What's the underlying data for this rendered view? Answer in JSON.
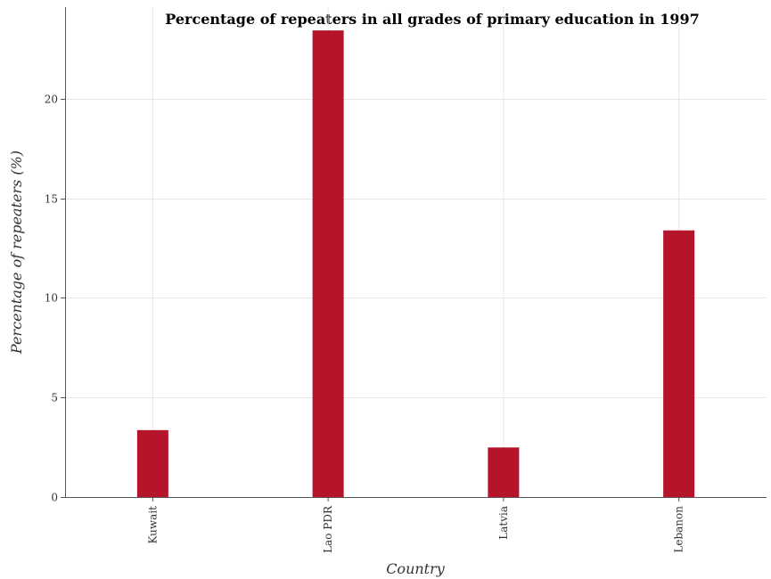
{
  "chart_data": {
    "type": "bar",
    "title": "Percentage of repeaters in all grades of primary education in 1997",
    "xlabel": "Country",
    "ylabel": "Percentage of repeaters (%)",
    "categories": [
      "Kuwait",
      "Lao PDR",
      "Latvia",
      "Lebanon"
    ],
    "values": [
      3.36,
      23.43,
      2.49,
      13.39
    ],
    "ylim": [
      0,
      24.6
    ],
    "yticks": [
      0,
      5,
      10,
      15,
      20
    ],
    "ytick_labels": [
      "0",
      "5",
      "10",
      "15",
      "20"
    ],
    "grid": true,
    "bar_color": "#b5152b"
  }
}
